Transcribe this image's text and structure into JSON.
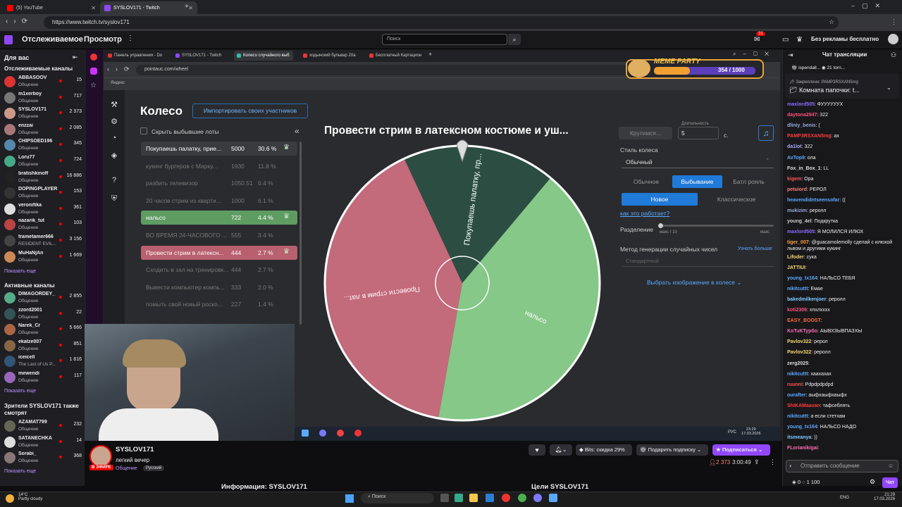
{
  "browser": {
    "tabs": [
      {
        "label": "(5) YouTube",
        "color": "#ff0000"
      },
      {
        "label": "SYSLOV171 - Twitch",
        "color": "#9147ff"
      }
    ],
    "url": "https://www.twitch.tv/syslov171"
  },
  "twitch_top": {
    "following": "Отслеживаемое",
    "browse": "Просмотр",
    "search_placeholder": "Поиск",
    "notif_count": "31",
    "no_ads": "Без рекламы бесплатно"
  },
  "sidebar": {
    "for_you": "Для вас",
    "followed_title": "Отслеживаемые каналы",
    "followed": [
      {
        "name": "ABBASOOV",
        "cat": "Общение",
        "viewers": "15",
        "color": "#d33"
      },
      {
        "name": "m1xerboy",
        "cat": "Общение",
        "viewers": "717",
        "color": "#777"
      },
      {
        "name": "SYSLOV171",
        "cat": "Общение",
        "viewers": "2 373",
        "color": "#c98"
      },
      {
        "name": "enzzai",
        "cat": "Общение",
        "viewers": "2 085",
        "color": "#a77"
      },
      {
        "name": "CHIPSOED196",
        "cat": "Общение",
        "viewers": "345",
        "color": "#58a"
      },
      {
        "name": "Loru77",
        "cat": "Общение",
        "viewers": "724",
        "color": "#4a8"
      },
      {
        "name": "bratishkinoff",
        "cat": "Общение",
        "viewers": "16 886",
        "color": "#222"
      },
      {
        "name": "DOPINGPLAYER",
        "cat": "Общение",
        "viewers": "153",
        "color": "#333"
      },
      {
        "name": "veronifika",
        "cat": "Общение",
        "viewers": "361",
        "color": "#ddd"
      },
      {
        "name": "nazarik_tut",
        "cat": "Общение",
        "viewers": "103",
        "color": "#b44"
      },
      {
        "name": "frametamer666",
        "cat": "RESIDENT EVIL...",
        "viewers": "3 156",
        "color": "#444"
      },
      {
        "name": "MuHaNjAn",
        "cat": "Общение",
        "viewers": "1 669",
        "color": "#c85"
      }
    ],
    "show_more": "Показать еще",
    "active_title": "Активные каналы",
    "active": [
      {
        "name": "DIMAGORDEY_",
        "cat": "Общение",
        "viewers": "2 855",
        "color": "#5a8"
      },
      {
        "name": "zzord2001",
        "cat": "Общение",
        "viewers": "22",
        "color": "#355"
      },
      {
        "name": "Narek_Cr",
        "cat": "Общение",
        "viewers": "5 666",
        "color": "#a64"
      },
      {
        "name": "ekatze007",
        "cat": "Общение",
        "viewers": "851",
        "color": "#864"
      },
      {
        "name": "iceicell",
        "cat": "The Last of Us P...",
        "viewers": "1 816",
        "color": "#357"
      },
      {
        "name": "mewendi",
        "cat": "Общение",
        "viewers": "117",
        "color": "#96b"
      }
    ],
    "also_title": "Зрители SYSLOV171 также смотрят",
    "also": [
      {
        "name": "AZAMAT799",
        "cat": "Общение",
        "viewers": "232",
        "color": "#665"
      },
      {
        "name": "SATANECHKA",
        "cat": "Общение",
        "viewers": "14",
        "color": "#ddd"
      },
      {
        "name": "Sorabi_",
        "cat": "Общение",
        "viewers": "368",
        "color": "#877"
      }
    ]
  },
  "inner_browser": {
    "tabs": [
      "Панель управления - Do",
      "SYSLOV171 - Twitch",
      "Колесо случайного выб",
      "ходынский бульвар 20а",
      "Бесплатный Картацион"
    ],
    "url": "pointauc.com/wheel",
    "bookmark": "Яндекс"
  },
  "meme_party": {
    "title": "MEME PARTY",
    "count": "354 / 1000",
    "progress": 0.354
  },
  "wheel_app": {
    "title": "Колесо",
    "import_button": "Импортировать своих участников",
    "hide_dropped": "Скрыть выбывшие лоты",
    "lots": [
      {
        "name": "Покупаешь палатку, прие...",
        "value": "5000",
        "pct": "30.6 %",
        "state": "active",
        "color": "#2d4a3d"
      },
      {
        "name": "кукинг бургеров с Марку...",
        "value": "1930",
        "pct": "11.8 %",
        "state": "dead"
      },
      {
        "name": "разбить телевизор",
        "value": "1050.51",
        "pct": "6.4 %",
        "state": "dead"
      },
      {
        "name": "20 часов стрим из кварти...",
        "value": "1000",
        "pct": "6.1 %",
        "state": "dead"
      },
      {
        "name": "нальсо",
        "value": "722",
        "pct": "4.4 %",
        "state": "active",
        "color": "#5f9c62"
      },
      {
        "name": "ВО ВРЕМЯ 24-ЧАСОВОГО ...",
        "value": "555",
        "pct": "3.4 %",
        "state": "dead"
      },
      {
        "name": "Провести стрим в латексн...",
        "value": "444",
        "pct": "2.7 %",
        "state": "active",
        "color": "#b8606e"
      },
      {
        "name": "Сходить в зал на тренировк...",
        "value": "444",
        "pct": "2.7 %",
        "state": "dead"
      },
      {
        "name": "Вывести компьютер компь...",
        "value": "333",
        "pct": "2.0 %",
        "state": "dead"
      },
      {
        "name": "помыть свой новый роско...",
        "value": "227",
        "pct": "1.4 %",
        "state": "dead"
      }
    ],
    "wheel_title": "Провести стрим в латексном костюме и уш...",
    "segments": [
      {
        "label": "Провести стрим в лат...",
        "color": "#c36a7b",
        "from": 190,
        "to": 335
      },
      {
        "label": "Покупаешь палатку, пр...",
        "color": "#2c4e42",
        "from": 335,
        "to": 400
      },
      {
        "label": "нальсо",
        "color": "#86c888",
        "from": 40,
        "to": 190
      }
    ],
    "spin_button": "Крутимся...",
    "duration_label": "Длительность",
    "duration_value": "5",
    "duration_unit": "с.",
    "style_label": "Стиль колеса",
    "style_value": "Обычный",
    "modes": [
      "Обычное",
      "Выбывание",
      "Батл рояль"
    ],
    "active_mode": "Выбывание",
    "submodes": [
      "Новое",
      "Классическое"
    ],
    "active_submode": "Новое",
    "how_link": "как это работает?",
    "split_label": "Разделение",
    "split_min": "макс / 10",
    "split_max": "макс",
    "gen_label": "Метод генерации случайных чисел",
    "gen_link": "Узнать больше",
    "gen_value": "Стандартный",
    "pick_image": "Выбрать изображение в колесе"
  },
  "stream_info": {
    "streamer": "SYSLOV171",
    "title": "легкий вечер",
    "category": "Общение",
    "language": "Русский",
    "live": "В ЭФИРЕ",
    "bits": "Bits: скидка 29%",
    "gift": "Подарить подписку",
    "subscribe": "Подписаться",
    "viewers": "2 373",
    "uptime": "3:00:49",
    "info_title": "Информация: SYSLOV171",
    "goals_title": "Цели SYSLOV171"
  },
  "chat": {
    "header": "Чат трансляции",
    "top_user": "ispendall...",
    "top_count": "21",
    "top_user2": "torn...",
    "pinned_by": "Закреплено: PAMP3RSXAN5mg",
    "pinned_text": "Комната папочки: t...",
    "messages": [
      {
        "user": "maxlord505",
        "text": ": ФУУУУУУХ",
        "color": "#8a6cff"
      },
      {
        "user": "daytona2947",
        "text": ": 322",
        "color": "#ff4f7a"
      },
      {
        "user": "dliniy_benis",
        "text": ": (",
        "color": "#9ad"
      },
      {
        "user": "PAMP3RSXAN5mg",
        "text": ": ах",
        "color": "#ff3b3b"
      },
      {
        "user": "da1lot",
        "text": ": 322",
        "color": "#aaf"
      },
      {
        "user": "AvTop9",
        "text": ": ола",
        "color": "#5aa9ff"
      },
      {
        "user": "Fox_in_Box_1",
        "text": ": LL",
        "color": "#ddd"
      },
      {
        "user": "kigem",
        "text": ": Ора",
        "color": "#ff5555"
      },
      {
        "user": "petuiord",
        "text": ": РЕРОЛ",
        "color": "#ff7b7b"
      },
      {
        "user": "heavendidntseensofar",
        "text": ": ((",
        "color": "#5aa9ff"
      },
      {
        "user": "mukizim",
        "text": ": реролл",
        "color": "#9ad"
      },
      {
        "user": "young_4el",
        "text": ": Подкрутка",
        "color": "#ccc"
      },
      {
        "user": "maxlord505",
        "text": ": Я МОЛИЛСЯ ИЛЮХ",
        "color": "#8a6cff"
      },
      {
        "user": "tiger_007",
        "text": ": @guacamolemolly сделай с илюхой львом и другими кукинг",
        "color": "#ff9f40"
      },
      {
        "user": "Lifoder",
        "text": ": сука",
        "color": "#f5d76e"
      },
      {
        "user": "JATTIUI",
        "text": ": ",
        "color": "#f5d76e"
      },
      {
        "user": "young_tx164",
        "text": ": НАЛЬСО ТЕБЯ",
        "color": "#5aa9ff"
      },
      {
        "user": "nikitcuttt",
        "text": ": Емае",
        "color": "#5aa9ff"
      },
      {
        "user": "bakedmilkenjoer",
        "text": ": реролл",
        "color": "#7ec9ff"
      },
      {
        "user": "koti2306",
        "text": ": хпхлхххх",
        "color": "#ff4f7a"
      },
      {
        "user": "EASY_BOOST",
        "text": ": ",
        "color": "#ff6b3b"
      },
      {
        "user": "KoTuKTypбo",
        "text": ": АЫВХЗЫВПАЗХЫ",
        "color": "#ff6bb5"
      },
      {
        "user": "Pavlov322",
        "text": ": рерол",
        "color": "#f5d76e"
      },
      {
        "user": "Pavlov322",
        "text": ": реролл",
        "color": "#f5d76e"
      },
      {
        "user": "zerg2025",
        "text": ": ",
        "color": "#ddd"
      },
      {
        "user": "nikitcuttt",
        "text": ": хаахахах",
        "color": "#5aa9ff"
      },
      {
        "user": "ruunni",
        "text": ": Pdpdpdpdpd",
        "color": "#ff4f4f"
      },
      {
        "user": "ourafter",
        "text": ": аыфхаыфхаыфх",
        "color": "#5aa9ff"
      },
      {
        "user": "ShiKAMaavan",
        "text": ": тафсеблять",
        "color": "#ff3b3b"
      },
      {
        "user": "nikitcuttt",
        "text": ": а если стетхам",
        "color": "#5aa9ff"
      },
      {
        "user": "young_tx164",
        "text": ": НАЛЬСО НАДО",
        "color": "#5aa9ff"
      },
      {
        "user": "itsmeanya",
        "text": ": ))",
        "color": "#7ec9ff"
      },
      {
        "user": "FLorianikigai",
        "text": ": ",
        "color": "#ff6bb5"
      }
    ],
    "input_placeholder": "Отправить сообщение",
    "points": "0",
    "points2": "1 100",
    "send": "Чат"
  },
  "taskbar": {
    "weather_temp": "14°C",
    "weather_text": "Partly cloudy",
    "search": "Поиск",
    "lang": "ENG",
    "time": "21:29",
    "date": "17.03.2026",
    "inner_lang": "РУС",
    "inner_time": "23:29",
    "inner_date": "17.03.2026"
  }
}
